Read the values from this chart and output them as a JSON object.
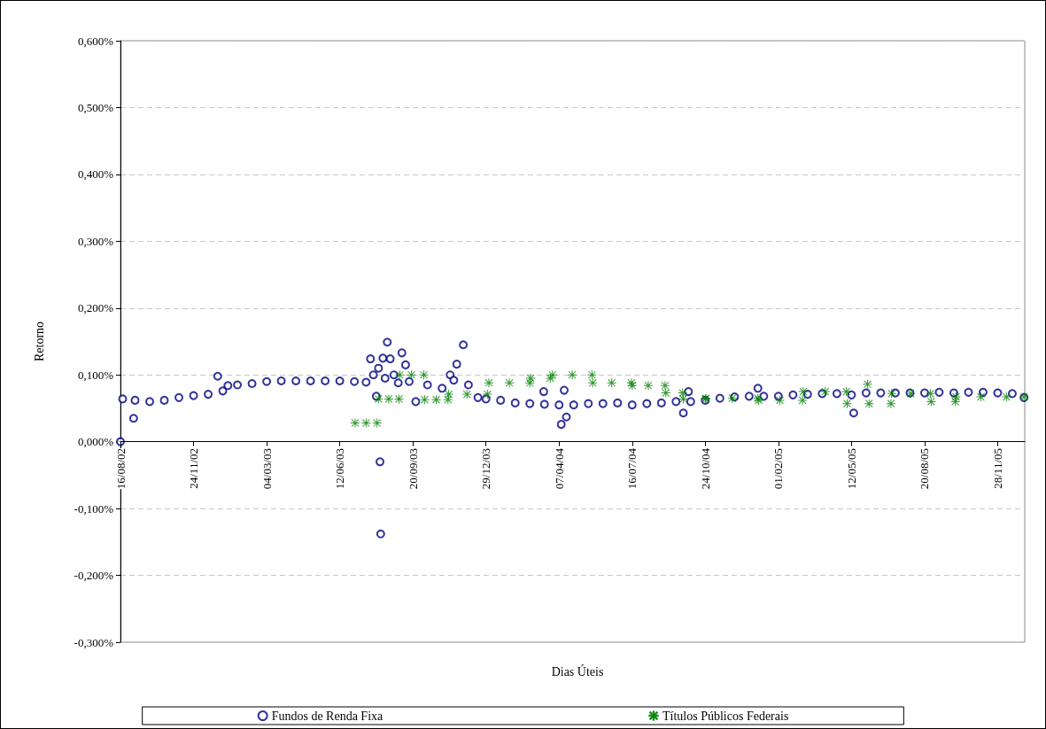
{
  "chart_data": {
    "type": "scatter",
    "xlabel": "Dias Úteis",
    "ylabel": "Retorno",
    "xlim": [
      "2002-08-16",
      "2006-01-04"
    ],
    "xticks": [
      {
        "value": "2002-08-16",
        "label": "16/08/02"
      },
      {
        "value": "2002-11-24",
        "label": "24/11/02"
      },
      {
        "value": "2003-03-04",
        "label": "04/03/03"
      },
      {
        "value": "2003-06-12",
        "label": "12/06/03"
      },
      {
        "value": "2003-09-20",
        "label": "20/09/03"
      },
      {
        "value": "2003-12-29",
        "label": "29/12/03"
      },
      {
        "value": "2004-04-07",
        "label": "07/04/04"
      },
      {
        "value": "2004-07-16",
        "label": "16/07/04"
      },
      {
        "value": "2004-10-24",
        "label": "24/10/04"
      },
      {
        "value": "2005-02-01",
        "label": "01/02/05"
      },
      {
        "value": "2005-05-12",
        "label": "12/05/05"
      },
      {
        "value": "2005-08-20",
        "label": "20/08/05"
      },
      {
        "value": "2005-11-28",
        "label": "28/11/05"
      }
    ],
    "ylim": [
      -0.3,
      0.6
    ],
    "yticks": [
      {
        "value": -0.3,
        "label": "-0,300%"
      },
      {
        "value": -0.2,
        "label": "-0,200%"
      },
      {
        "value": -0.1,
        "label": "-0,100%"
      },
      {
        "value": 0,
        "label": "0,000%"
      },
      {
        "value": 0.1,
        "label": "0,100%"
      },
      {
        "value": 0.2,
        "label": "0,200%"
      },
      {
        "value": 0.3,
        "label": "0,300%"
      },
      {
        "value": 0.4,
        "label": "0,400%"
      },
      {
        "value": 0.5,
        "label": "0,500%"
      },
      {
        "value": 0.6,
        "label": "0,600%"
      }
    ],
    "grid": "y",
    "legend": "bottom",
    "series": [
      {
        "name": "Fundos de Renda Fixa",
        "color": "#000080",
        "marker": "circle",
        "x": [
          "2002-08-16",
          "2002-08-19",
          "2002-09-03",
          "2002-09-05",
          "2002-09-25",
          "2002-10-15",
          "2002-11-04",
          "2002-11-24",
          "2002-12-14",
          "2002-12-27",
          "2003-01-03",
          "2003-01-10",
          "2003-01-23",
          "2003-02-12",
          "2003-03-04",
          "2003-03-24",
          "2003-04-13",
          "2003-05-03",
          "2003-05-23",
          "2003-06-12",
          "2003-07-02",
          "2003-07-18",
          "2003-07-24",
          "2003-07-28",
          "2003-08-01",
          "2003-08-04",
          "2003-08-06",
          "2003-08-07",
          "2003-08-10",
          "2003-08-13",
          "2003-08-16",
          "2003-08-20",
          "2003-08-25",
          "2003-08-31",
          "2003-09-05",
          "2003-09-10",
          "2003-09-15",
          "2003-09-24",
          "2003-10-10",
          "2003-10-30",
          "2003-11-10",
          "2003-11-15",
          "2003-11-19",
          "2003-11-28",
          "2003-12-05",
          "2003-12-18",
          "2003-12-29",
          "2004-01-18",
          "2004-02-07",
          "2004-02-27",
          "2004-03-17",
          "2004-03-18",
          "2004-04-07",
          "2004-04-10",
          "2004-04-14",
          "2004-04-17",
          "2004-04-27",
          "2004-05-17",
          "2004-06-06",
          "2004-06-26",
          "2004-07-16",
          "2004-08-05",
          "2004-08-25",
          "2004-09-14",
          "2004-09-24",
          "2004-10-01",
          "2004-10-04",
          "2004-10-24",
          "2004-11-13",
          "2004-12-03",
          "2004-12-23",
          "2005-01-04",
          "2005-01-12",
          "2005-02-01",
          "2005-02-21",
          "2005-03-13",
          "2005-04-02",
          "2005-04-22",
          "2005-05-12",
          "2005-05-15",
          "2005-06-01",
          "2005-06-21",
          "2005-07-11",
          "2005-07-31",
          "2005-08-20",
          "2005-09-09",
          "2005-09-29",
          "2005-10-19",
          "2005-11-08",
          "2005-11-28",
          "2005-12-18",
          "2006-01-03"
        ],
        "values": [
          0.0,
          0.064,
          0.035,
          0.062,
          0.06,
          0.062,
          0.066,
          0.069,
          0.071,
          0.098,
          0.076,
          0.084,
          0.085,
          0.087,
          0.09,
          0.091,
          0.091,
          0.091,
          0.091,
          0.091,
          0.09,
          0.089,
          0.124,
          0.1,
          0.068,
          0.11,
          -0.03,
          -0.138,
          0.125,
          0.095,
          0.149,
          0.124,
          0.1,
          0.088,
          0.133,
          0.115,
          0.09,
          0.06,
          0.085,
          0.08,
          0.1,
          0.092,
          0.116,
          0.145,
          0.085,
          0.066,
          0.064,
          0.062,
          0.058,
          0.057,
          0.075,
          0.056,
          0.055,
          0.026,
          0.077,
          0.037,
          0.055,
          0.057,
          0.057,
          0.058,
          0.055,
          0.057,
          0.058,
          0.06,
          0.043,
          0.075,
          0.06,
          0.062,
          0.065,
          0.067,
          0.068,
          0.08,
          0.068,
          0.068,
          0.07,
          0.071,
          0.072,
          0.072,
          0.07,
          0.043,
          0.073,
          0.073,
          0.073,
          0.073,
          0.073,
          0.074,
          0.073,
          0.074,
          0.074,
          0.073,
          0.072,
          0.066
        ]
      },
      {
        "name": "Títulos Públicos Federais",
        "color": "#008000",
        "marker": "star",
        "x": [
          "2003-07-03",
          "2003-07-18",
          "2003-08-02",
          "2003-08-04",
          "2003-08-18",
          "2003-09-01",
          "2003-09-02",
          "2003-09-18",
          "2003-10-05",
          "2003-10-06",
          "2003-10-22",
          "2003-11-07",
          "2003-11-08",
          "2003-12-03",
          "2003-12-31",
          "2004-01-02",
          "2004-01-30",
          "2004-02-27",
          "2004-02-28",
          "2004-03-26",
          "2004-03-29",
          "2004-04-25",
          "2004-05-22",
          "2004-05-23",
          "2004-06-18",
          "2004-07-15",
          "2004-07-16",
          "2004-08-07",
          "2004-08-30",
          "2004-08-31",
          "2004-09-23",
          "2004-09-24",
          "2004-10-24",
          "2004-10-25",
          "2004-11-30",
          "2005-01-04",
          "2005-01-05",
          "2005-02-03",
          "2005-03-06",
          "2005-03-07",
          "2005-04-06",
          "2005-05-05",
          "2005-05-06",
          "2005-06-03",
          "2005-06-05",
          "2005-07-05",
          "2005-07-06",
          "2005-08-01",
          "2005-08-28",
          "2005-08-29",
          "2005-10-01",
          "2005-10-02",
          "2005-11-05",
          "2005-12-10",
          "2006-01-03"
        ],
        "values": [
          0.028,
          0.028,
          0.028,
          0.064,
          0.064,
          0.064,
          0.1,
          0.1,
          0.1,
          0.063,
          0.063,
          0.063,
          0.071,
          0.071,
          0.071,
          0.088,
          0.088,
          0.088,
          0.095,
          0.095,
          0.1,
          0.1,
          0.1,
          0.088,
          0.088,
          0.088,
          0.084,
          0.084,
          0.084,
          0.073,
          0.073,
          0.064,
          0.064,
          0.065,
          0.065,
          0.065,
          0.062,
          0.062,
          0.062,
          0.075,
          0.075,
          0.075,
          0.057,
          0.086,
          0.057,
          0.057,
          0.072,
          0.072,
          0.072,
          0.06,
          0.06,
          0.067,
          0.067,
          0.067,
          0.067
        ]
      }
    ]
  }
}
